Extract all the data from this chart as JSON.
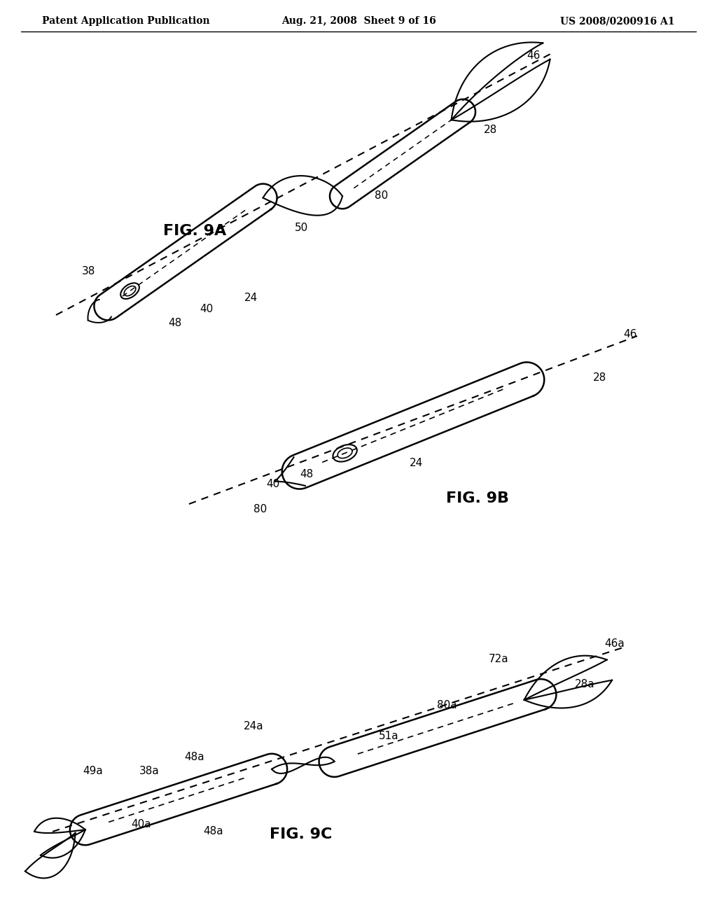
{
  "background_color": "#ffffff",
  "header_left": "Patent Application Publication",
  "header_center": "Aug. 21, 2008  Sheet 9 of 16",
  "header_right": "US 2008/0200916 A1",
  "fig_labels": [
    "FIG. 9A",
    "FIG. 9B",
    "FIG. 9C"
  ],
  "fig_label_fontsize": 16,
  "ref_fontsize": 11,
  "header_fontsize": 10
}
